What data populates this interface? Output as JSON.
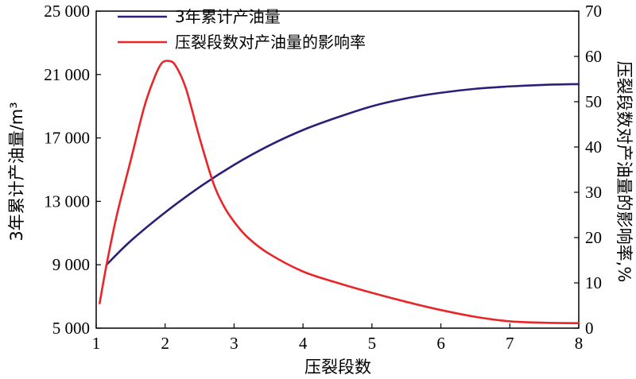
{
  "chart_data": {
    "type": "line",
    "xlabel": "压裂段数",
    "ylabel_left": "3年累计产油量/m³",
    "ylabel_right": "压裂段数对产油量的影响率,%",
    "xlim": [
      1,
      8
    ],
    "ylim_left": [
      5000,
      25000
    ],
    "ylim_right": [
      0,
      70
    ],
    "x_ticks": [
      "1",
      "2",
      "3",
      "4",
      "5",
      "6",
      "7",
      "8"
    ],
    "y_left_ticks": [
      "5 000",
      "9 000",
      "13 000",
      "17 000",
      "21 000",
      "25 000"
    ],
    "y_right_ticks": [
      "0",
      "10",
      "20",
      "30",
      "40",
      "50",
      "60",
      "70"
    ],
    "legend_position": "top-left",
    "series": [
      {
        "name": "3年累计产油量",
        "axis": "left",
        "color": "#2b1f7a",
        "x": [
          1.15,
          1.5,
          2,
          2.5,
          3,
          3.5,
          4,
          4.5,
          5,
          5.5,
          6,
          6.5,
          7,
          7.5,
          8
        ],
        "y": [
          9000,
          10500,
          12300,
          13900,
          15300,
          16500,
          17500,
          18300,
          19000,
          19500,
          19850,
          20100,
          20250,
          20350,
          20400
        ]
      },
      {
        "name": "压裂段数对产油量的影响率",
        "axis": "right",
        "color": "#e8262a",
        "x": [
          1.05,
          1.15,
          1.3,
          1.5,
          1.7,
          1.85,
          1.95,
          2.05,
          2.15,
          2.3,
          2.5,
          2.7,
          2.85,
          3,
          3.2,
          3.5,
          4,
          4.5,
          5,
          5.5,
          6,
          6.5,
          7,
          7.5,
          8
        ],
        "y": [
          5.5,
          14,
          25,
          37,
          49,
          55.5,
          58.5,
          59,
          58,
          53,
          42,
          32,
          27,
          23.5,
          20,
          16.5,
          12.5,
          10,
          7.8,
          5.8,
          4.0,
          2.5,
          1.5,
          1.2,
          1.1
        ]
      }
    ]
  }
}
